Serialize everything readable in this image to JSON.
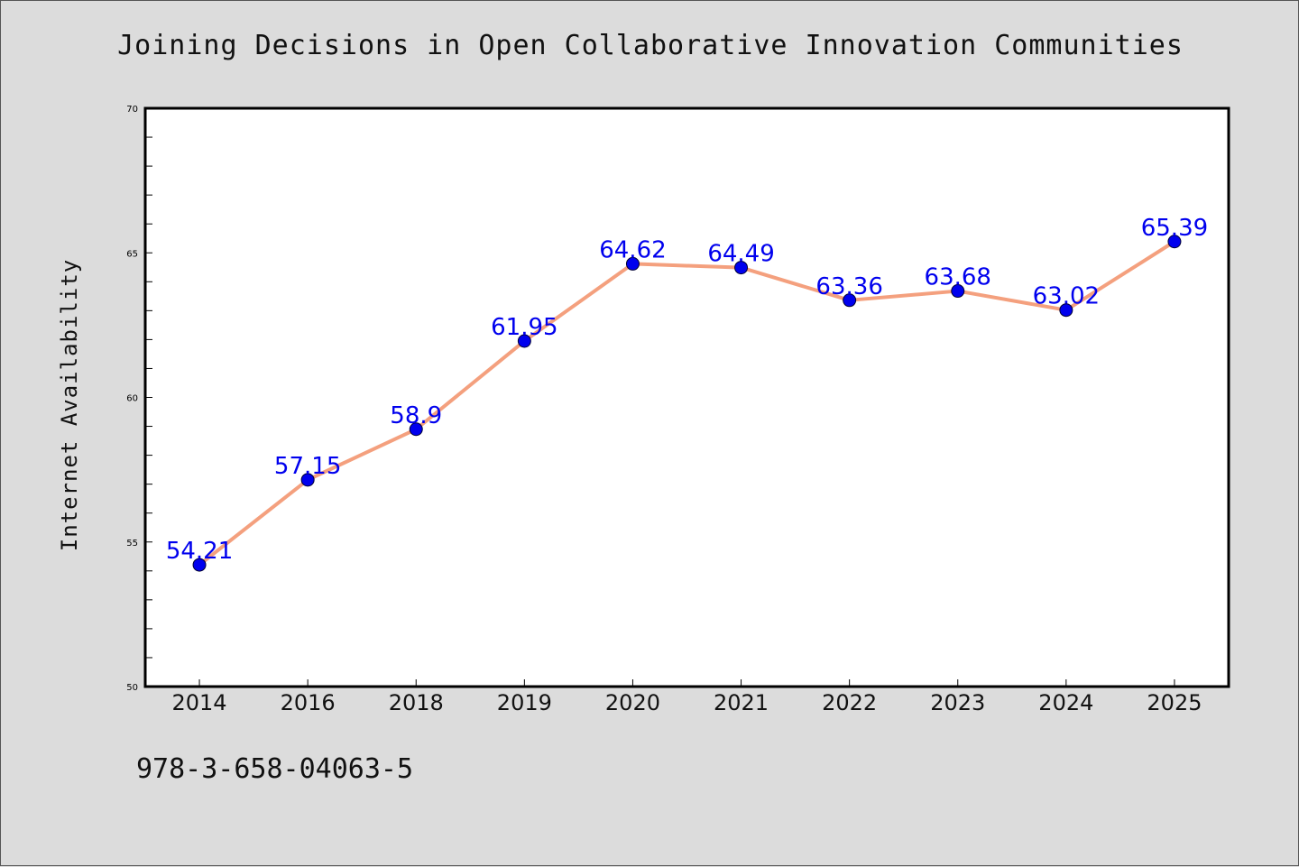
{
  "chart_data": {
    "type": "line",
    "title": "Joining Decisions in Open Collaborative Innovation Communities",
    "xlabel": "",
    "ylabel": "Internet Availability",
    "categories": [
      "2014",
      "2016",
      "2018",
      "2019",
      "2020",
      "2021",
      "2022",
      "2023",
      "2024",
      "2025"
    ],
    "series": [
      {
        "values": [
          54.21,
          57.15,
          58.9,
          61.95,
          64.62,
          64.49,
          63.36,
          63.68,
          63.02,
          65.39
        ],
        "labels": [
          "54.21",
          "57.15",
          "58.9",
          "61.95",
          "64.62",
          "64.49",
          "63.36",
          "63.68",
          "63.02",
          "65.39"
        ]
      }
    ],
    "ylim": [
      50,
      70
    ],
    "yticks": [
      "50",
      "55",
      "60",
      "65",
      "70"
    ],
    "grid": false,
    "legend": "none",
    "colors": {
      "line": "#f4a07e",
      "marker": "#0000ee",
      "marker_edge": "#000033",
      "label": "#0000ee",
      "plot_bg": "#ffffff",
      "page_bg": "#dcdcdc"
    }
  },
  "footer": {
    "isbn": "978-3-658-04063-5"
  }
}
